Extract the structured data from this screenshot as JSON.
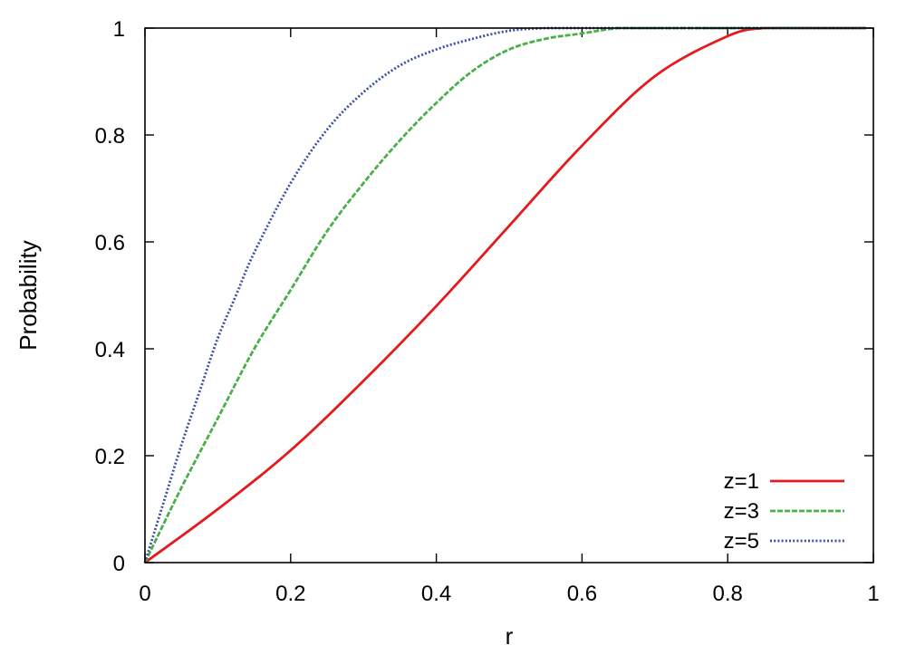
{
  "chart_data": {
    "type": "line",
    "title": "",
    "xlabel": "r",
    "ylabel": "Probability",
    "xlim": [
      0,
      1
    ],
    "ylim": [
      0,
      1
    ],
    "xticks": [
      "0",
      "0.2",
      "0.4",
      "0.6",
      "0.8",
      "1"
    ],
    "yticks": [
      "0",
      "0.2",
      "0.4",
      "0.6",
      "0.8",
      "1"
    ],
    "grid": false,
    "legend_position": "bottom-right",
    "series": [
      {
        "name": "z=1",
        "color": "#e41a1c",
        "dash": "solid",
        "x": [
          0,
          0.1,
          0.2,
          0.3,
          0.4,
          0.5,
          0.6,
          0.7,
          0.8,
          0.85,
          0.9,
          0.95,
          0.99
        ],
        "y": [
          0,
          0.1,
          0.21,
          0.34,
          0.48,
          0.63,
          0.78,
          0.91,
          0.985,
          1.0,
          1.0,
          1.0,
          1.0
        ]
      },
      {
        "name": "z=3",
        "color": "#4daf4a",
        "dash": "dashed",
        "x": [
          0,
          0.05,
          0.1,
          0.15,
          0.2,
          0.25,
          0.3,
          0.35,
          0.4,
          0.45,
          0.5,
          0.55,
          0.6,
          0.65,
          0.7,
          0.8,
          0.99
        ],
        "y": [
          0,
          0.14,
          0.27,
          0.4,
          0.51,
          0.62,
          0.71,
          0.79,
          0.86,
          0.92,
          0.96,
          0.98,
          0.99,
          1.0,
          1.0,
          1.0,
          1.0
        ]
      },
      {
        "name": "z=5",
        "color": "#3b4fa0",
        "dash": "dotted",
        "x": [
          0,
          0.025,
          0.05,
          0.075,
          0.1,
          0.125,
          0.15,
          0.2,
          0.25,
          0.3,
          0.35,
          0.4,
          0.45,
          0.5,
          0.55,
          0.6,
          0.7,
          0.99
        ],
        "y": [
          0,
          0.11,
          0.22,
          0.32,
          0.42,
          0.5,
          0.58,
          0.71,
          0.81,
          0.88,
          0.93,
          0.96,
          0.98,
          0.995,
          1.0,
          1.0,
          1.0,
          1.0
        ]
      }
    ]
  }
}
